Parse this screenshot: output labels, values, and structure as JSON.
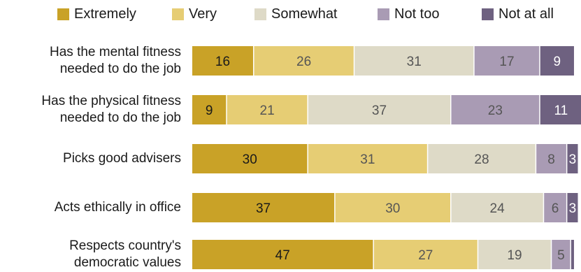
{
  "chart_data": {
    "type": "bar",
    "orientation": "horizontal-stacked",
    "title": "",
    "xlabel": "",
    "ylabel": "",
    "xlim": [
      0,
      100
    ],
    "grid": false,
    "legend_placement": "top",
    "categories": [
      [
        "Has the mental fitness",
        "needed to do the job"
      ],
      [
        "Has the physical fitness",
        "needed to do the job"
      ],
      [
        "Picks good advisers"
      ],
      [
        "Acts ethically in office"
      ],
      [
        "Respects country's",
        "democratic values"
      ]
    ],
    "series": [
      {
        "name": "Extremely",
        "color": "#c9a227",
        "label_color": "#1a1a1a",
        "values": [
          16,
          9,
          30,
          37,
          47
        ]
      },
      {
        "name": "Very",
        "color": "#e6cd74",
        "label_color": "#555555",
        "values": [
          26,
          21,
          31,
          30,
          27
        ]
      },
      {
        "name": "Somewhat",
        "color": "#dedac7",
        "label_color": "#555555",
        "values": [
          31,
          37,
          28,
          24,
          19
        ]
      },
      {
        "name": "Not too",
        "color": "#a99bb4",
        "label_color": "#555555",
        "values": [
          17,
          23,
          8,
          6,
          5
        ]
      },
      {
        "name": "Not at all",
        "color": "#6e6180",
        "label_color": "#ffffff",
        "values": [
          9,
          11,
          3,
          3,
          1
        ]
      }
    ],
    "data_labels": [
      [
        "16",
        "26",
        "31",
        "17",
        "9"
      ],
      [
        "9",
        "21",
        "37",
        "23",
        "11"
      ],
      [
        "30",
        "31",
        "28",
        "8",
        "3"
      ],
      [
        "37",
        "30",
        "24",
        "6",
        "3"
      ],
      [
        "47",
        "27",
        "19",
        "5",
        ""
      ]
    ]
  }
}
